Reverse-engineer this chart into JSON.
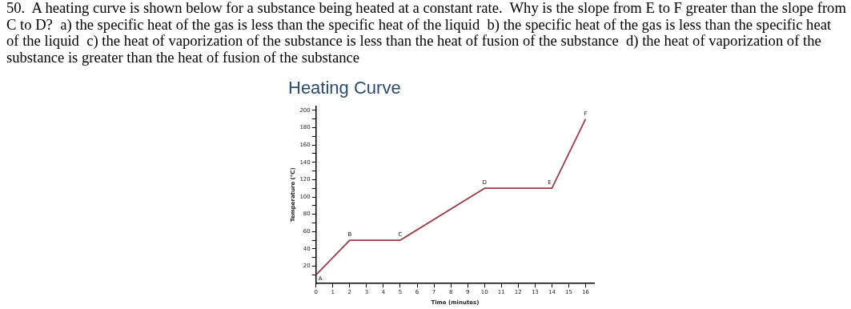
{
  "chart_data": {
    "type": "line",
    "title": "Heating Curve",
    "xlabel": "Time (minutes)",
    "ylabel": "Temperature (°C)",
    "x": [
      0,
      2,
      5,
      10,
      14,
      16
    ],
    "series": [
      {
        "color": "#9b3a48",
        "values": [
          10,
          50,
          50,
          110,
          110,
          190
        ]
      }
    ],
    "xlim": [
      0,
      16.5
    ],
    "ylim": [
      0,
      205
    ],
    "xticks": [
      0,
      1,
      2,
      3,
      4,
      5,
      6,
      7,
      8,
      9,
      10,
      11,
      12,
      13,
      14,
      15,
      16
    ],
    "yticks": [
      {
        "value": 10,
        "label": null
      },
      20,
      {
        "value": 30,
        "label": null
      },
      40,
      {
        "value": 50,
        "label": null
      },
      60,
      {
        "value": 70,
        "label": null
      },
      80,
      {
        "value": 90,
        "label": null
      },
      100,
      {
        "value": 110,
        "label": null
      },
      120,
      {
        "value": 130,
        "label": null
      },
      140,
      {
        "value": 150,
        "label": null
      },
      160,
      {
        "value": 170,
        "label": null
      },
      180,
      {
        "value": 190,
        "label": null
      },
      200
    ],
    "grid": false,
    "legend": false,
    "marker": "none",
    "line_style": "solid",
    "annotations": [
      "50.  A heating curve is shown below for a substance being heated at a constant rate.  Why is the slope from E to F greater than the slope from C to D?  a) the specific heat of the gas is less than the specific heat of the liquid  b) the specific heat of the gas is less than the specific heat of the liquid  c) the heat of vaporization of the substance is less than the heat of fusion of the substance  d) the heat of vaporization of the substance is greater than the heat of fusion of the substance",
      {
        "text": "A",
        "x": 0,
        "y": 10
      },
      {
        "text": "B",
        "x": 2,
        "y": 50
      },
      {
        "text": "C",
        "x": 5,
        "y": 50
      },
      {
        "text": "D",
        "x": 10,
        "y": 110
      },
      {
        "text": "E",
        "x": 14,
        "y": 110
      },
      {
        "text": "F",
        "x": 16,
        "y": 190
      }
    ]
  }
}
